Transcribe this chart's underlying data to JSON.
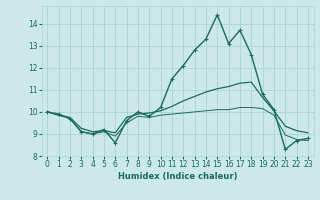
{
  "xlabel": "Humidex (Indice chaleur)",
  "bg_color": "#cce8ea",
  "grid_color": "#aad4d6",
  "line_color": "#1a6b5a",
  "xlim": [
    -0.5,
    23.5
  ],
  "ylim": [
    8.0,
    14.8
  ],
  "yticks": [
    8,
    9,
    10,
    11,
    12,
    13,
    14
  ],
  "xtick_labels": [
    "0",
    "1",
    "2",
    "3",
    "4",
    "5",
    "6",
    "7",
    "8",
    "9",
    "10",
    "11",
    "12",
    "13",
    "14",
    "15",
    "16",
    "17",
    "18",
    "19",
    "20",
    "21",
    "22",
    "23"
  ],
  "series": [
    {
      "x": [
        0,
        1,
        2,
        3,
        4,
        5,
        6,
        7,
        8,
        9,
        10,
        11,
        12,
        13,
        14,
        15,
        16,
        17,
        18,
        19,
        20,
        21,
        22,
        23
      ],
      "y": [
        10.0,
        9.9,
        9.7,
        9.1,
        9.0,
        9.2,
        8.6,
        9.6,
        10.0,
        9.8,
        10.2,
        11.5,
        12.1,
        12.8,
        13.3,
        14.4,
        13.1,
        13.7,
        12.6,
        10.8,
        10.1,
        8.3,
        8.7,
        8.8
      ],
      "marker": true,
      "lw": 1.0
    },
    {
      "x": [
        0,
        1,
        2,
        3,
        4,
        5,
        6,
        7,
        8,
        9,
        10,
        11,
        12,
        13,
        14,
        15,
        16,
        17,
        18,
        19,
        20,
        21,
        22,
        23
      ],
      "y": [
        10.0,
        9.85,
        9.75,
        9.25,
        9.1,
        9.15,
        9.05,
        9.75,
        9.9,
        9.95,
        10.05,
        10.25,
        10.5,
        10.7,
        10.9,
        11.05,
        11.15,
        11.3,
        11.35,
        10.65,
        10.05,
        9.35,
        9.15,
        9.05
      ],
      "marker": false,
      "lw": 0.9
    },
    {
      "x": [
        0,
        1,
        2,
        3,
        4,
        5,
        6,
        7,
        8,
        9,
        10,
        11,
        12,
        13,
        14,
        15,
        16,
        17,
        18,
        19,
        20,
        21,
        22,
        23
      ],
      "y": [
        10.0,
        9.85,
        9.7,
        9.1,
        9.0,
        9.1,
        8.9,
        9.5,
        9.8,
        9.75,
        9.85,
        9.9,
        9.95,
        10.0,
        10.05,
        10.1,
        10.1,
        10.2,
        10.2,
        10.15,
        9.85,
        8.95,
        8.75,
        8.7
      ],
      "marker": false,
      "lw": 0.7
    }
  ]
}
